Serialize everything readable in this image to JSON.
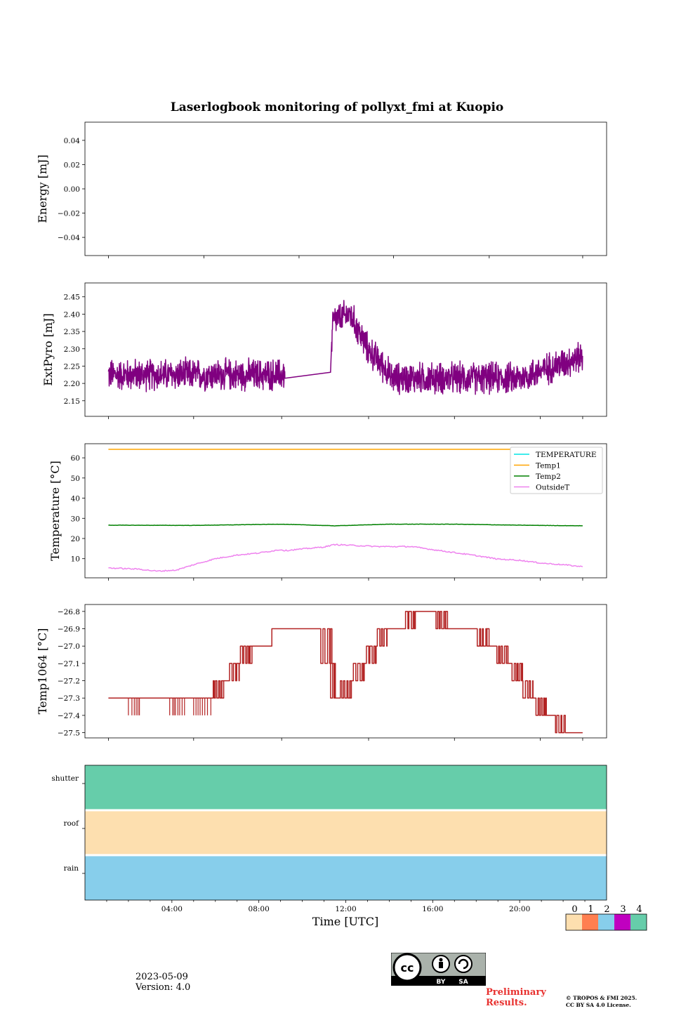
{
  "title": "Laserlogbook monitoring of pollyxt_fmi at Kuopio",
  "xaxis": {
    "label": "Time [UTC]",
    "range": [
      0,
      24
    ],
    "ticks": [
      4,
      8,
      12,
      16,
      20
    ],
    "tick_labels": [
      "04:00",
      "08:00",
      "12:00",
      "16:00",
      "20:00"
    ],
    "data_start_hour": 1.08,
    "data_end_hour": 22.9
  },
  "chart_data": [
    {
      "id": "energy",
      "type": "line",
      "ylabel": "Energy [mJ]",
      "ylim": [
        -0.055,
        0.055
      ],
      "yticks": [
        0.04,
        0.02,
        0.0,
        -0.02,
        -0.04
      ],
      "ytick_labels": [
        "0.04",
        "0.02",
        "0.00",
        "−0.02",
        "−0.04"
      ],
      "series": []
    },
    {
      "id": "extpyro",
      "type": "line",
      "ylabel": "ExtPyro [mJ]",
      "ylim": [
        2.105,
        2.49
      ],
      "yticks": [
        2.15,
        2.2,
        2.25,
        2.3,
        2.35,
        2.4,
        2.45
      ],
      "ytick_labels": [
        "2.15",
        "2.20",
        "2.25",
        "2.30",
        "2.35",
        "2.40",
        "2.45"
      ],
      "series": [
        {
          "name": "ExtPyro",
          "color": "#800080",
          "segments": [
            {
              "t0": 1.08,
              "t1": 9.2,
              "mean": 2.225,
              "amp": 0.045
            },
            {
              "t0": 11.3,
              "t1": 22.9,
              "mean": 2.225,
              "amp": 0.045
            }
          ],
          "anchors": [
            [
              9.2,
              2.215
            ],
            [
              11.3,
              2.232
            ],
            [
              11.4,
              2.38
            ],
            [
              12.2,
              2.4
            ],
            [
              13.0,
              2.3
            ],
            [
              14.0,
              2.23
            ],
            [
              18.0,
              2.21
            ],
            [
              20.0,
              2.23
            ],
            [
              22.9,
              2.28
            ]
          ]
        }
      ]
    },
    {
      "id": "temperature",
      "type": "line",
      "ylabel": "Temperature [°C]",
      "ylim": [
        0.5,
        67
      ],
      "yticks": [
        10,
        20,
        30,
        40,
        50,
        60
      ],
      "ytick_labels": [
        "10",
        "20",
        "30",
        "40",
        "50",
        "60"
      ],
      "legend_position": "upper-right",
      "series": [
        {
          "name": "TEMPERATURE",
          "color": "#00e5e5",
          "points": []
        },
        {
          "name": "Temp1",
          "color": "#ffa500",
          "points": [
            [
              1.08,
              64.2
            ],
            [
              22.9,
              64.2
            ]
          ]
        },
        {
          "name": "Temp2",
          "color": "#008000",
          "points": [
            [
              1.08,
              26.6
            ],
            [
              5,
              26.5
            ],
            [
              9,
              27.1
            ],
            [
              11.5,
              26.3
            ],
            [
              14,
              27.1
            ],
            [
              17,
              27.1
            ],
            [
              20,
              26.6
            ],
            [
              22.9,
              26.3
            ]
          ]
        },
        {
          "name": "OutsideT",
          "color": "#ee82ee",
          "points": [
            [
              1.08,
              5.4
            ],
            [
              2.5,
              4.8
            ],
            [
              3.3,
              3.8
            ],
            [
              4.2,
              4.3
            ],
            [
              5.0,
              7.0
            ],
            [
              6.0,
              10.0
            ],
            [
              7.0,
              11.8
            ],
            [
              8.0,
              12.8
            ],
            [
              9.0,
              14.5
            ],
            [
              9.2,
              14.0
            ],
            [
              11.0,
              15.8
            ],
            [
              11.5,
              17.0
            ],
            [
              12.5,
              16.5
            ],
            [
              13.5,
              16.0
            ],
            [
              15.0,
              16.0
            ],
            [
              16.0,
              14.5
            ],
            [
              17.0,
              13.0
            ],
            [
              18.0,
              11.5
            ],
            [
              19.0,
              9.8
            ],
            [
              20.0,
              9.2
            ],
            [
              21.0,
              7.8
            ],
            [
              22.0,
              7.0
            ],
            [
              22.9,
              6.0
            ]
          ]
        }
      ]
    },
    {
      "id": "temp1064",
      "type": "line",
      "ylabel": "Temp1064 [°C]",
      "ylim": [
        -27.53,
        -26.76
      ],
      "yticks": [
        -26.8,
        -26.9,
        -27.0,
        -27.1,
        -27.2,
        -27.3,
        -27.4,
        -27.5
      ],
      "ytick_labels": [
        "−26.8",
        "−26.9",
        "−27.0",
        "−27.1",
        "−27.2",
        "−27.3",
        "−27.4",
        "−27.5"
      ],
      "series": [
        {
          "name": "Temp1064",
          "color": "#b22222",
          "steps": [
            [
              1.08,
              -27.3
            ],
            [
              5.9,
              -27.3
            ],
            [
              6.3,
              -27.2
            ],
            [
              7.1,
              -27.1
            ],
            [
              7.6,
              -27.0
            ],
            [
              8.6,
              -26.9
            ],
            [
              9.2,
              -26.9
            ],
            [
              11.3,
              -27.1
            ],
            [
              11.5,
              -27.3
            ],
            [
              12.2,
              -27.2
            ],
            [
              12.8,
              -27.1
            ],
            [
              13.4,
              -27.0
            ],
            [
              13.9,
              -26.9
            ],
            [
              15.2,
              -26.8
            ],
            [
              16.6,
              -26.9
            ],
            [
              18.5,
              -27.0
            ],
            [
              19.4,
              -27.1
            ],
            [
              20.1,
              -27.2
            ],
            [
              20.6,
              -27.3
            ],
            [
              21.2,
              -27.4
            ],
            [
              22.1,
              -27.5
            ],
            [
              22.9,
              -27.5
            ]
          ]
        }
      ]
    },
    {
      "id": "status",
      "type": "heatmap",
      "rows": [
        "shutter",
        "roof",
        "rain"
      ],
      "row_values": [
        4,
        0,
        2
      ],
      "colorbar": {
        "labels": [
          "0",
          "1",
          "2",
          "3",
          "4"
        ],
        "colors": [
          "#fddfaf",
          "#ff7f50",
          "#87ceeb",
          "#c000c0",
          "#66cdaa"
        ]
      }
    }
  ],
  "footer": {
    "date": "2023-05-09",
    "version": "Version: 4.0",
    "preliminary_1": "Preliminary",
    "preliminary_2": "Results.",
    "copyright_1": "© TROPOS & FMI 2025.",
    "copyright_2": "CC BY SA 4.0 License.",
    "cc_by": "BY",
    "cc_sa": "SA"
  }
}
